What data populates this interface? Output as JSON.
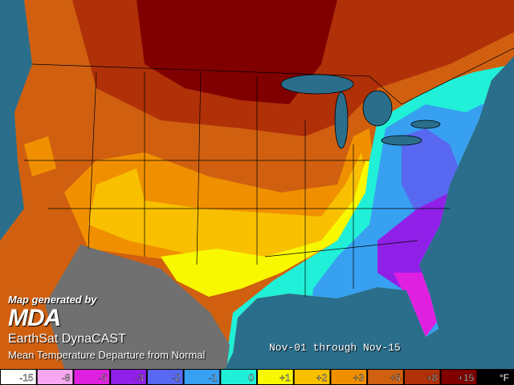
{
  "credit": {
    "line": "Map generated by",
    "logo": "MDA"
  },
  "product": "EarthSat DynaCAST",
  "subtitle": "Mean Temperature Departure from Normal",
  "period": "Nov-01 through Nov-15",
  "legend": {
    "items": [
      {
        "label": "-15",
        "color": "#ffffff"
      },
      {
        "label": "-8",
        "color": "#f8a8f0"
      },
      {
        "label": "-5",
        "color": "#e020e0"
      },
      {
        "label": "-3",
        "color": "#9020e8"
      },
      {
        "label": "-2",
        "color": "#5868f0"
      },
      {
        "label": "-1",
        "color": "#38a0f0"
      },
      {
        "label": "0",
        "color": "#20f0d8"
      },
      {
        "label": "+1",
        "color": "#f8f800"
      },
      {
        "label": "+2",
        "color": "#f8c000"
      },
      {
        "label": "+3",
        "color": "#f09000"
      },
      {
        "label": "+5",
        "color": "#d06010"
      },
      {
        "label": "+8",
        "color": "#b03008"
      },
      {
        "label": "+15",
        "color": "#800000"
      }
    ],
    "unit": "°F"
  }
}
